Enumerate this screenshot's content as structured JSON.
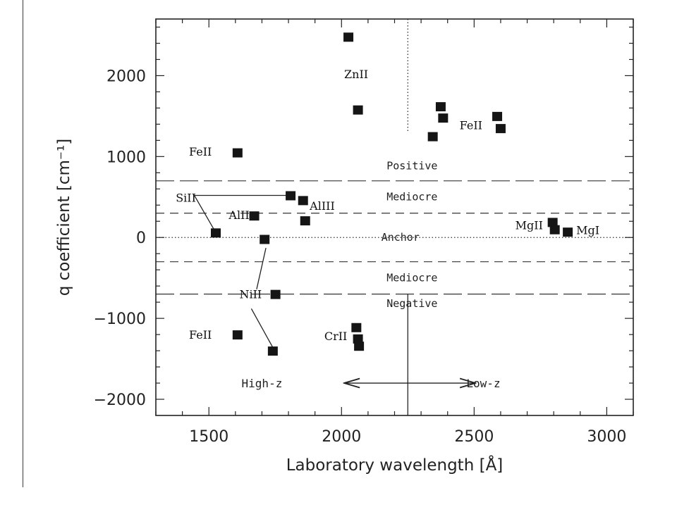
{
  "chart_data": {
    "type": "scatter",
    "xlabel": "Laboratory wavelength [Å]",
    "ylabel": "q coefficient [cm⁻¹]",
    "xlim": [
      1300,
      3100
    ],
    "ylim": [
      -2200,
      2700
    ],
    "xticks": [
      1500,
      2000,
      2500,
      3000
    ],
    "xtick_labels": [
      "1500",
      "2000",
      "2500",
      "3000"
    ],
    "yticks": [
      2000,
      1000,
      0,
      -1000,
      -2000
    ],
    "ytick_labels": [
      "2000",
      "1000",
      "0",
      "−1000",
      "−2000"
    ],
    "grid": false,
    "points": [
      {
        "x": 2026,
        "y": 2480
      },
      {
        "x": 2062,
        "y": 1580
      },
      {
        "x": 2374,
        "y": 1620
      },
      {
        "x": 2383,
        "y": 1480
      },
      {
        "x": 2344,
        "y": 1250
      },
      {
        "x": 2587,
        "y": 1500
      },
      {
        "x": 2600,
        "y": 1350
      },
      {
        "x": 1608,
        "y": 1050
      },
      {
        "x": 1808,
        "y": 520
      },
      {
        "x": 1855,
        "y": 460
      },
      {
        "x": 1863,
        "y": 210
      },
      {
        "x": 1671,
        "y": 270
      },
      {
        "x": 1526,
        "y": 60
      },
      {
        "x": 1710,
        "y": -20
      },
      {
        "x": 1751,
        "y": -700
      },
      {
        "x": 1741,
        "y": -1400
      },
      {
        "x": 1608,
        "y": -1200
      },
      {
        "x": 2056,
        "y": -1110
      },
      {
        "x": 2062,
        "y": -1250
      },
      {
        "x": 2066,
        "y": -1340
      },
      {
        "x": 2796,
        "y": 190
      },
      {
        "x": 2804,
        "y": 100
      },
      {
        "x": 2853,
        "y": 70
      }
    ],
    "hlines": [
      {
        "y": 700,
        "style": "long-dash"
      },
      {
        "y": 300,
        "style": "dash"
      },
      {
        "y": 0,
        "style": "dotted"
      },
      {
        "y": -300,
        "style": "dash"
      },
      {
        "y": -700,
        "style": "long-dash"
      }
    ],
    "vline_upper": {
      "x": 2250,
      "y_from": 2700,
      "y_to": 1300,
      "style": "dotted"
    },
    "vline_lower": {
      "x": 2250,
      "y_from": -2200,
      "y_to": -700,
      "style": "solid"
    },
    "region_labels": [
      {
        "text": "Positive",
        "x": 2170,
        "y": 840
      },
      {
        "text": "Mediocre",
        "x": 2170,
        "y": 460
      },
      {
        "text": "Anchor",
        "x": 2150,
        "y": -40
      },
      {
        "text": "Mediocre",
        "x": 2170,
        "y": -540
      },
      {
        "text": "Negative",
        "x": 2170,
        "y": -860
      }
    ],
    "annotations": [
      {
        "text": "ZnII",
        "x": 2010,
        "y": 1970
      },
      {
        "text": "FeII",
        "x": 2445,
        "y": 1340
      },
      {
        "text": "FeII",
        "x": 1425,
        "y": 1010
      },
      {
        "text": "SiII",
        "x": 1375,
        "y": 440
      },
      {
        "text": "AlII",
        "x": 1575,
        "y": 230
      },
      {
        "text": "AlIII",
        "x": 1880,
        "y": 340
      },
      {
        "text": "MgII",
        "x": 2655,
        "y": 100
      },
      {
        "text": "MgI",
        "x": 2885,
        "y": 40
      },
      {
        "text": "NiII",
        "x": 1615,
        "y": -750
      },
      {
        "text": "FeII",
        "x": 1425,
        "y": -1250
      },
      {
        "text": "CrII",
        "x": 1935,
        "y": -1270
      }
    ],
    "connector_lines": [
      [
        [
          1445,
          520
        ],
        [
          1808,
          520
        ]
      ],
      [
        [
          1445,
          520
        ],
        [
          1526,
          60
        ]
      ],
      [
        [
          1715,
          -130
        ],
        [
          1680,
          -640
        ]
      ],
      [
        [
          1660,
          -880
        ],
        [
          1741,
          -1360
        ]
      ]
    ],
    "direction_labels": {
      "left": {
        "text": "High-z",
        "x": 1700,
        "y": -1800
      },
      "right": {
        "text": "Low-z",
        "x": 2535,
        "y": -1800
      },
      "arrow": {
        "x_from": 2010,
        "x_to": 2505,
        "y": -1800
      }
    }
  }
}
